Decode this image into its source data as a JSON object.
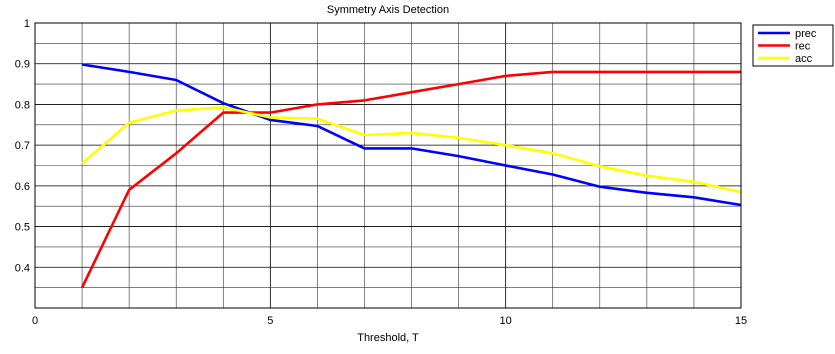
{
  "chart_data": {
    "type": "line",
    "title": "Symmetry Axis Detection",
    "xlabel": "Threshold, T",
    "ylabel": "",
    "xlim": [
      0,
      15
    ],
    "ylim": [
      0.3,
      1.0
    ],
    "xticks": [
      0,
      5,
      10,
      15
    ],
    "yticks": [
      0.4,
      0.5,
      0.6,
      0.7,
      0.8,
      0.9,
      1.0
    ],
    "xtick_labels": [
      "0",
      "5",
      "10",
      "15"
    ],
    "ytick_labels": [
      "0.4",
      "0.5",
      "0.6",
      "0.7",
      "0.8",
      "0.9",
      "1"
    ],
    "grid": true,
    "minor_grid": true,
    "legend_position": "outside-top-right",
    "x": [
      1,
      2,
      3,
      4,
      5,
      6,
      7,
      8,
      9,
      10,
      11,
      12,
      13,
      14,
      15
    ],
    "series": [
      {
        "name": "prec",
        "color": "#0000ff",
        "values": [
          0.898,
          0.88,
          0.86,
          0.803,
          0.762,
          0.747,
          0.692,
          0.692,
          0.673,
          0.65,
          0.628,
          0.598,
          0.583,
          0.572,
          0.553
        ]
      },
      {
        "name": "rec",
        "color": "#ff0000",
        "values": [
          0.35,
          0.59,
          0.68,
          0.78,
          0.78,
          0.8,
          0.81,
          0.83,
          0.85,
          0.87,
          0.88,
          0.88,
          0.88,
          0.88,
          0.88
        ]
      },
      {
        "name": "acc",
        "color": "#ffff00",
        "values": [
          0.655,
          0.755,
          0.785,
          0.793,
          0.768,
          0.765,
          0.725,
          0.73,
          0.718,
          0.7,
          0.68,
          0.648,
          0.625,
          0.61,
          0.585
        ]
      }
    ]
  }
}
